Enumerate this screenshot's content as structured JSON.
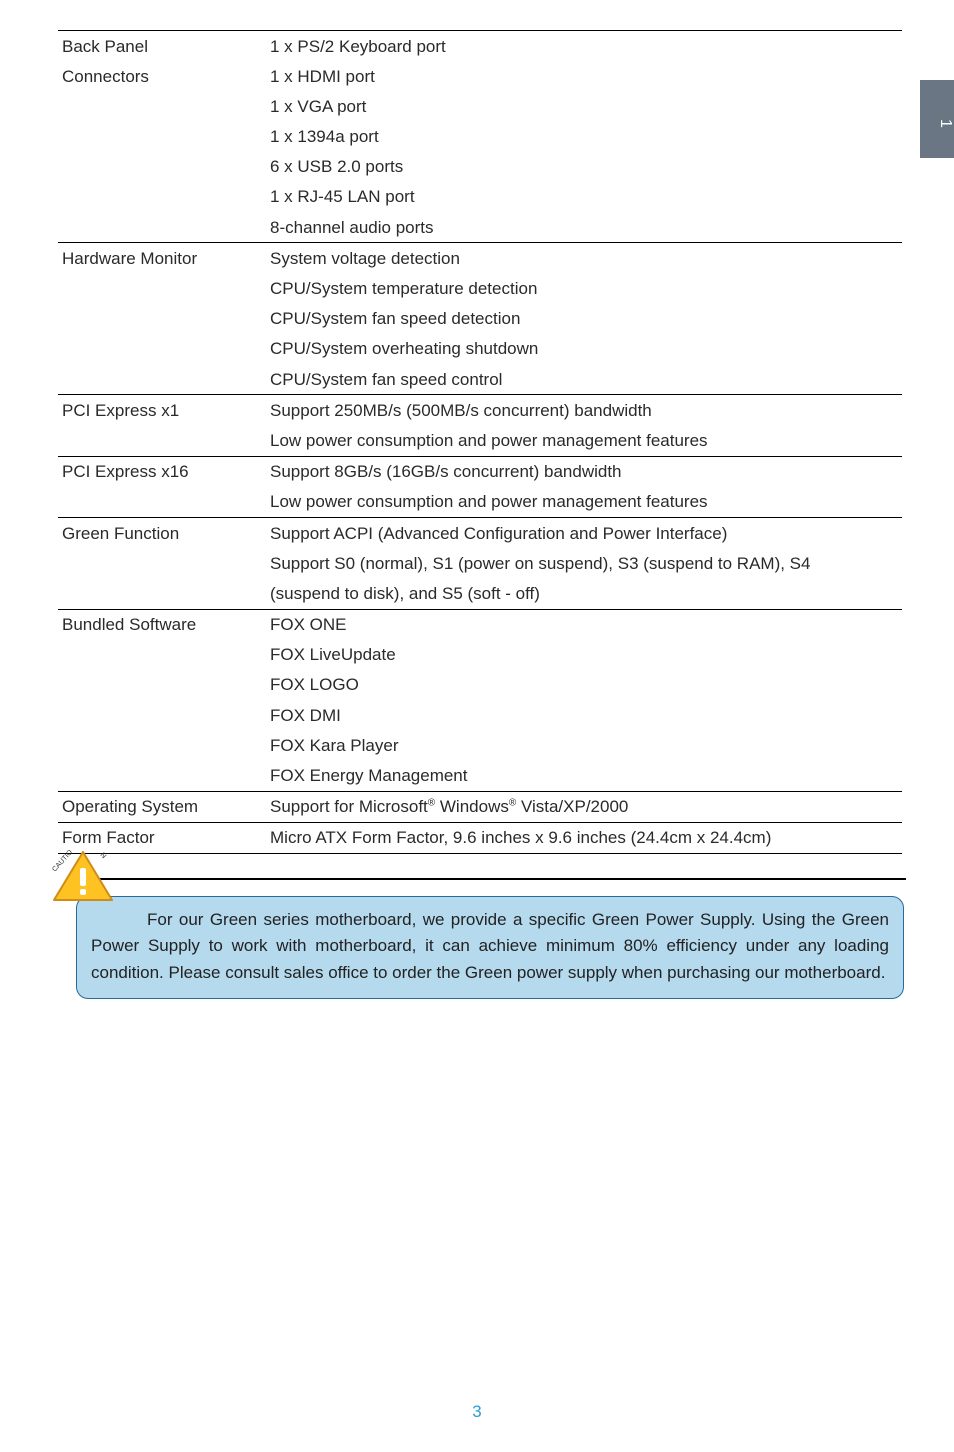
{
  "page_tab": "1",
  "page_number": "3",
  "table": {
    "rows": [
      {
        "label": "Back Panel",
        "value": "1 x PS/2 Keyboard port",
        "section": true
      },
      {
        "label": "Connectors",
        "value": "1 x HDMI port"
      },
      {
        "label": "",
        "value": "1 x VGA port"
      },
      {
        "label": "",
        "value": "1 x 1394a port"
      },
      {
        "label": "",
        "value": "6 x USB 2.0 ports"
      },
      {
        "label": "",
        "value": "1 x RJ-45 LAN port"
      },
      {
        "label": "",
        "value": "8-channel audio ports"
      },
      {
        "label": "Hardware Monitor",
        "value": "System voltage detection",
        "section": true
      },
      {
        "label": "",
        "value": "CPU/System temperature detection"
      },
      {
        "label": "",
        "value": "CPU/System fan speed detection"
      },
      {
        "label": "",
        "value": "CPU/System overheating shutdown"
      },
      {
        "label": "",
        "value": "CPU/System fan speed control"
      },
      {
        "label": "PCI Express x1",
        "value": "Support 250MB/s (500MB/s concurrent) bandwidth",
        "section": true
      },
      {
        "label": "",
        "value": "Low power consumption and power management features"
      },
      {
        "label": "PCI Express x16",
        "value": "Support 8GB/s (16GB/s concurrent) bandwidth",
        "section": true
      },
      {
        "label": "",
        "value": "Low power consumption and power management features"
      },
      {
        "label": "Green Function",
        "value": "Support ACPI (Advanced Configuration and Power Interface)",
        "section": true
      },
      {
        "label": "",
        "value": "Support S0 (normal), S1 (power on suspend), S3 (suspend to RAM), S4"
      },
      {
        "label": "",
        "value": "(suspend to disk), and S5 (soft - off)"
      },
      {
        "label": "Bundled Software",
        "value": "FOX ONE",
        "section": true
      },
      {
        "label": "",
        "value": "FOX LiveUpdate"
      },
      {
        "label": "",
        "value": "FOX LOGO"
      },
      {
        "label": "",
        "value": "FOX DMI"
      },
      {
        "label": "",
        "value": "FOX Kara Player"
      },
      {
        "label": "",
        "value": "FOX Energy Management"
      },
      {
        "label": "Operating System",
        "value_html": "Support for Microsoft<sup>®</sup> Windows<sup>®</sup> Vista/XP/2000",
        "section": true
      },
      {
        "label": "Form Factor",
        "value": "Micro ATX Form Factor, 9.6 inches x 9.6 inches (24.4cm x 24.4cm)",
        "section": true,
        "last": true
      }
    ]
  },
  "caution": {
    "label": "CAUTION",
    "text": "For our Green series motherboard, we provide a specific Green Power Supply. Using the Green Power Supply to work with motherboard, it can achieve minimum 80% efficiency under any loading condition. Please consult sales office to order the Green power supply when purchasing our motherboard."
  },
  "colors": {
    "tab_bg": "#6b7685",
    "bubble_bg": "#b5d9ed",
    "bubble_border": "#2a6a9a",
    "page_num_color": "#2aa0d8",
    "triangle_fill": "#fec223",
    "triangle_stroke": "#cf8d16"
  }
}
